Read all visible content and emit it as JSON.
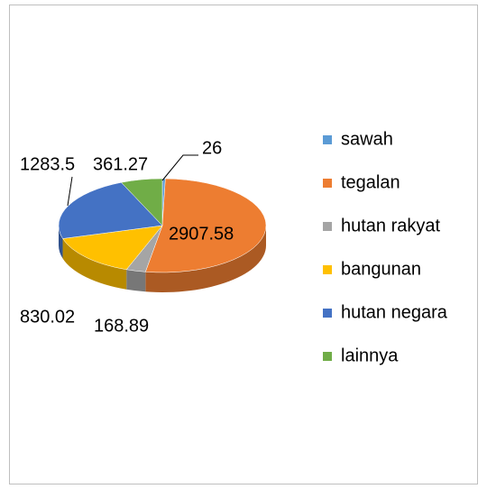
{
  "chart_data": {
    "type": "pie",
    "categories": [
      "sawah",
      "tegalan",
      "hutan rakyat",
      "bangunan",
      "hutan negara",
      "lainnya"
    ],
    "values": [
      26,
      2907.58,
      168.89,
      830.02,
      1283.5,
      361.27
    ],
    "colors": [
      "#5b9bd5",
      "#ed7d31",
      "#a5a5a5",
      "#ffc000",
      "#4472c4",
      "#70ad47"
    ],
    "legend": "right"
  }
}
